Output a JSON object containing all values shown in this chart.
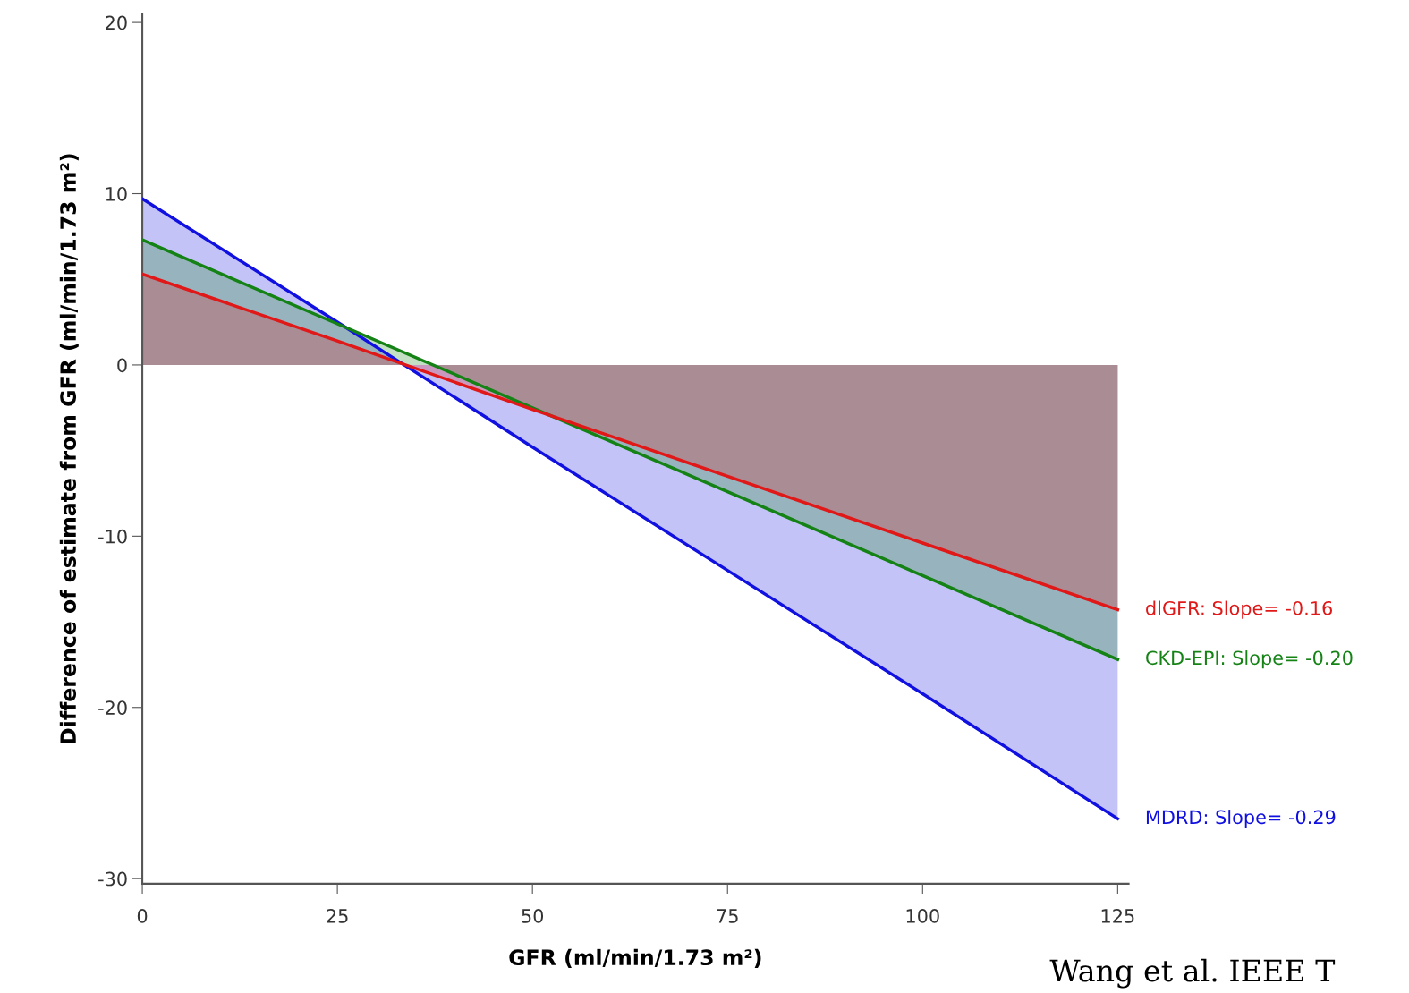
{
  "chart_data": {
    "type": "area",
    "xlabel": "GFR (ml/min/1.73 m²)",
    "ylabel": "Difference of estimate from GFR (ml/min/1.73 m²)",
    "x": [
      0,
      25,
      50,
      75,
      100,
      125
    ],
    "series": [
      {
        "name": "MDRD: Slope= -0.29",
        "color": "#1010e0",
        "values": [
          9.7,
          2.5,
          -4.8,
          -12.0,
          -19.2,
          -26.5
        ]
      },
      {
        "name": "CKD-EPI: Slope= -0.20",
        "color": "#148214",
        "values": [
          7.3,
          2.4,
          -2.5,
          -7.4,
          -12.3,
          -17.2
        ]
      },
      {
        "name": "dlGFR: Slope= -0.16",
        "color": "#e01818",
        "values": [
          5.3,
          1.4,
          -2.6,
          -6.5,
          -10.4,
          -14.3
        ]
      }
    ],
    "xlim": [
      0,
      126.4
    ],
    "xticks": [
      0,
      25,
      50,
      75,
      100,
      125
    ],
    "ylim": [
      -30.3,
      20.5
    ],
    "yticks": [
      -30,
      -20,
      -10,
      0,
      10,
      20
    ],
    "grid": false,
    "legend": false,
    "annotations": [
      "Wang et al. IEEE T"
    ]
  }
}
